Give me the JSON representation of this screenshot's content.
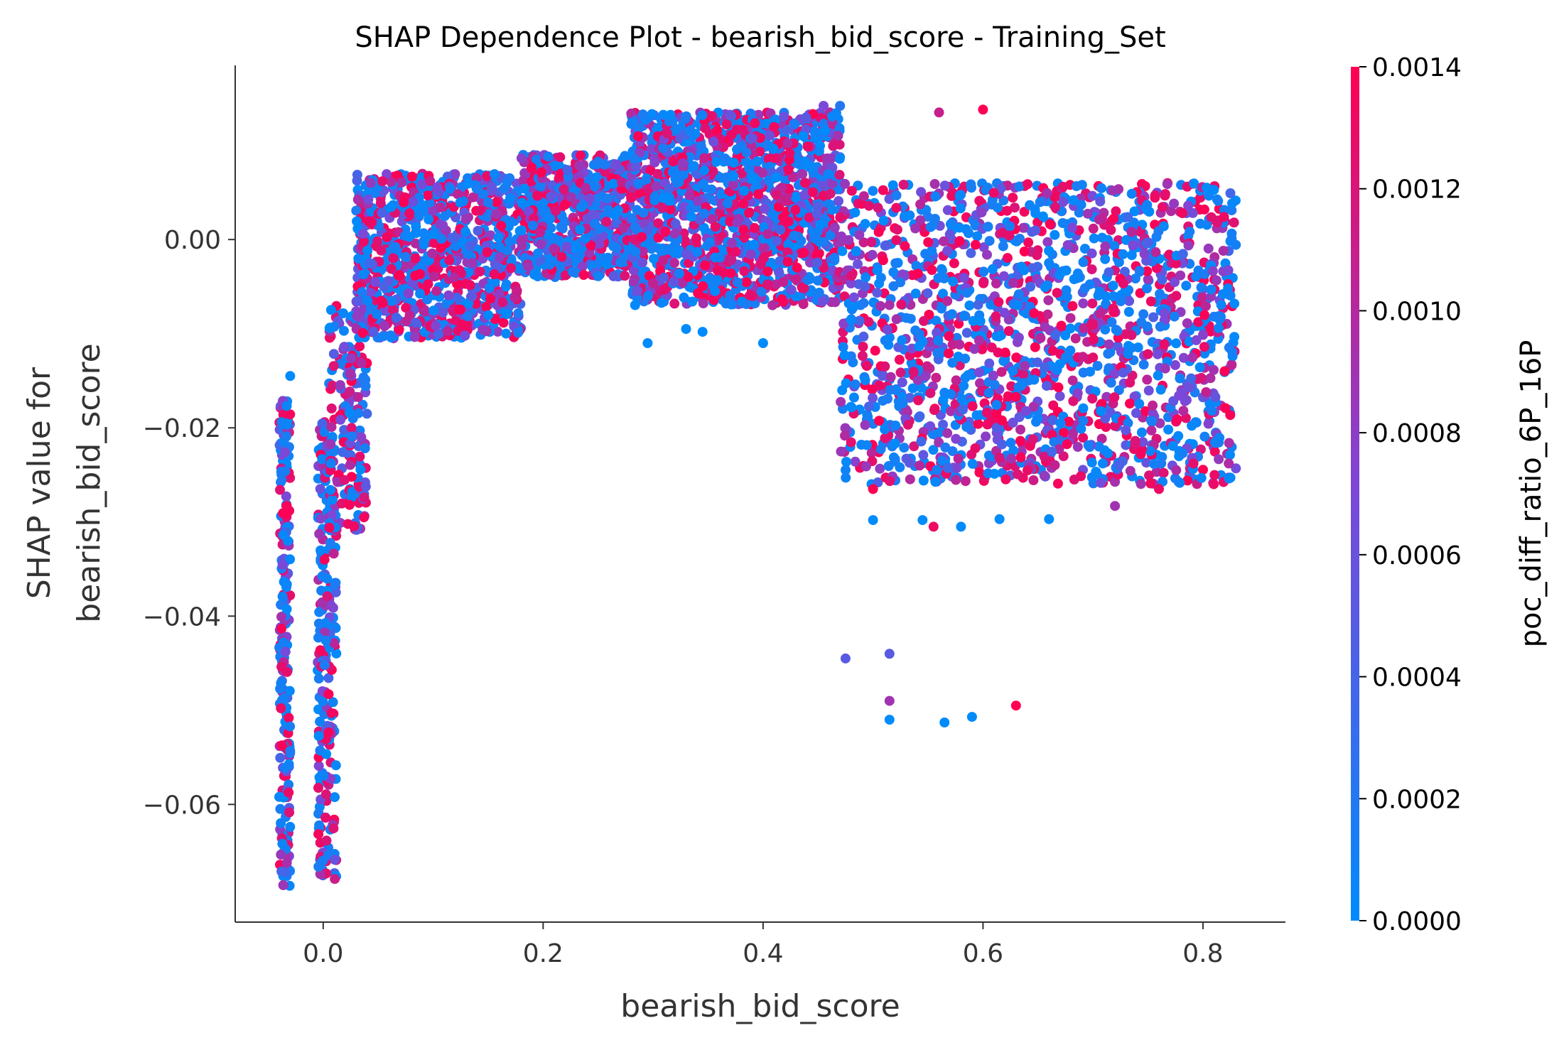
{
  "chart_data": {
    "type": "scatter",
    "title": "SHAP Dependence Plot - bearish_bid_score - Training_Set",
    "xlabel": "bearish_bid_score",
    "ylabel_lines": [
      "SHAP value for",
      "bearish_bid_score"
    ],
    "xlim": [
      -0.08,
      0.875
    ],
    "ylim": [
      -0.0725,
      0.0185
    ],
    "xticks": [
      0.0,
      0.2,
      0.4,
      0.6,
      0.8
    ],
    "xtick_labels": [
      "0.0",
      "0.2",
      "0.4",
      "0.6",
      "0.8"
    ],
    "yticks": [
      0.0,
      -0.02,
      -0.04,
      -0.06
    ],
    "ytick_labels": [
      "0.00",
      "−0.02",
      "−0.04",
      "−0.06"
    ],
    "grid": false,
    "colorbar": {
      "label": "poc_diff_ratio_6P_16P",
      "range": [
        0.0,
        0.0014
      ],
      "ticks": [
        0.0,
        0.0002,
        0.0004,
        0.0006,
        0.0008,
        0.001,
        0.0012,
        0.0014
      ],
      "tick_labels": [
        "0.0000",
        "0.0002",
        "0.0004",
        "0.0006",
        "0.0008",
        "0.0010",
        "0.0012",
        "0.0014"
      ],
      "color_low": "#008bfb",
      "color_high": "#ff0052"
    },
    "clusters": [
      {
        "x": [
          -0.04,
          -0.03
        ],
        "y": [
          -0.069,
          -0.017
        ],
        "n": 220
      },
      {
        "x": [
          -0.005,
          0.012
        ],
        "y": [
          -0.068,
          -0.019
        ],
        "n": 220
      },
      {
        "x": [
          0.005,
          0.04
        ],
        "y": [
          -0.031,
          -0.007
        ],
        "n": 180
      },
      {
        "x": [
          0.03,
          0.18
        ],
        "y": [
          -0.0105,
          0.007
        ],
        "n": 900
      },
      {
        "x": [
          0.18,
          0.28
        ],
        "y": [
          -0.004,
          0.009
        ],
        "n": 600
      },
      {
        "x": [
          0.28,
          0.47
        ],
        "y": [
          -0.007,
          0.0135
        ],
        "n": 1500
      },
      {
        "x": [
          0.47,
          0.83
        ],
        "y": [
          -0.026,
          0.006
        ],
        "n": 1700
      }
    ],
    "outliers": [
      {
        "x": -0.03,
        "y": -0.0145,
        "c": 0.0
      },
      {
        "x": 0.295,
        "y": -0.011,
        "c": 0.0
      },
      {
        "x": 0.33,
        "y": -0.0095,
        "c": 0.0
      },
      {
        "x": 0.345,
        "y": -0.0098,
        "c": 0.0
      },
      {
        "x": 0.4,
        "y": -0.011,
        "c": 0.0
      },
      {
        "x": 0.5,
        "y": -0.0265,
        "c": 0.0014
      },
      {
        "x": 0.5,
        "y": -0.0298,
        "c": 0.0
      },
      {
        "x": 0.545,
        "y": -0.0298,
        "c": 0.0
      },
      {
        "x": 0.555,
        "y": -0.0305,
        "c": 0.0013
      },
      {
        "x": 0.58,
        "y": -0.0305,
        "c": 0.0
      },
      {
        "x": 0.615,
        "y": -0.0297,
        "c": 0.0
      },
      {
        "x": 0.66,
        "y": -0.0297,
        "c": 0.0
      },
      {
        "x": 0.72,
        "y": -0.0283,
        "c": 0.0009
      },
      {
        "x": 0.76,
        "y": -0.0265,
        "c": 0.0013
      },
      {
        "x": 0.475,
        "y": -0.0445,
        "c": 0.0005
      },
      {
        "x": 0.515,
        "y": -0.044,
        "c": 0.0005
      },
      {
        "x": 0.515,
        "y": -0.049,
        "c": 0.0009
      },
      {
        "x": 0.515,
        "y": -0.051,
        "c": 0.0
      },
      {
        "x": 0.565,
        "y": -0.0513,
        "c": 0.0
      },
      {
        "x": 0.59,
        "y": -0.0507,
        "c": 0.0
      },
      {
        "x": 0.63,
        "y": -0.0495,
        "c": 0.0014
      },
      {
        "x": 0.455,
        "y": 0.0142,
        "c": 0.0007
      },
      {
        "x": 0.47,
        "y": 0.0142,
        "c": 0.0002
      },
      {
        "x": 0.6,
        "y": 0.0138,
        "c": 0.0014
      },
      {
        "x": 0.56,
        "y": 0.0135,
        "c": 0.0011
      }
    ]
  }
}
